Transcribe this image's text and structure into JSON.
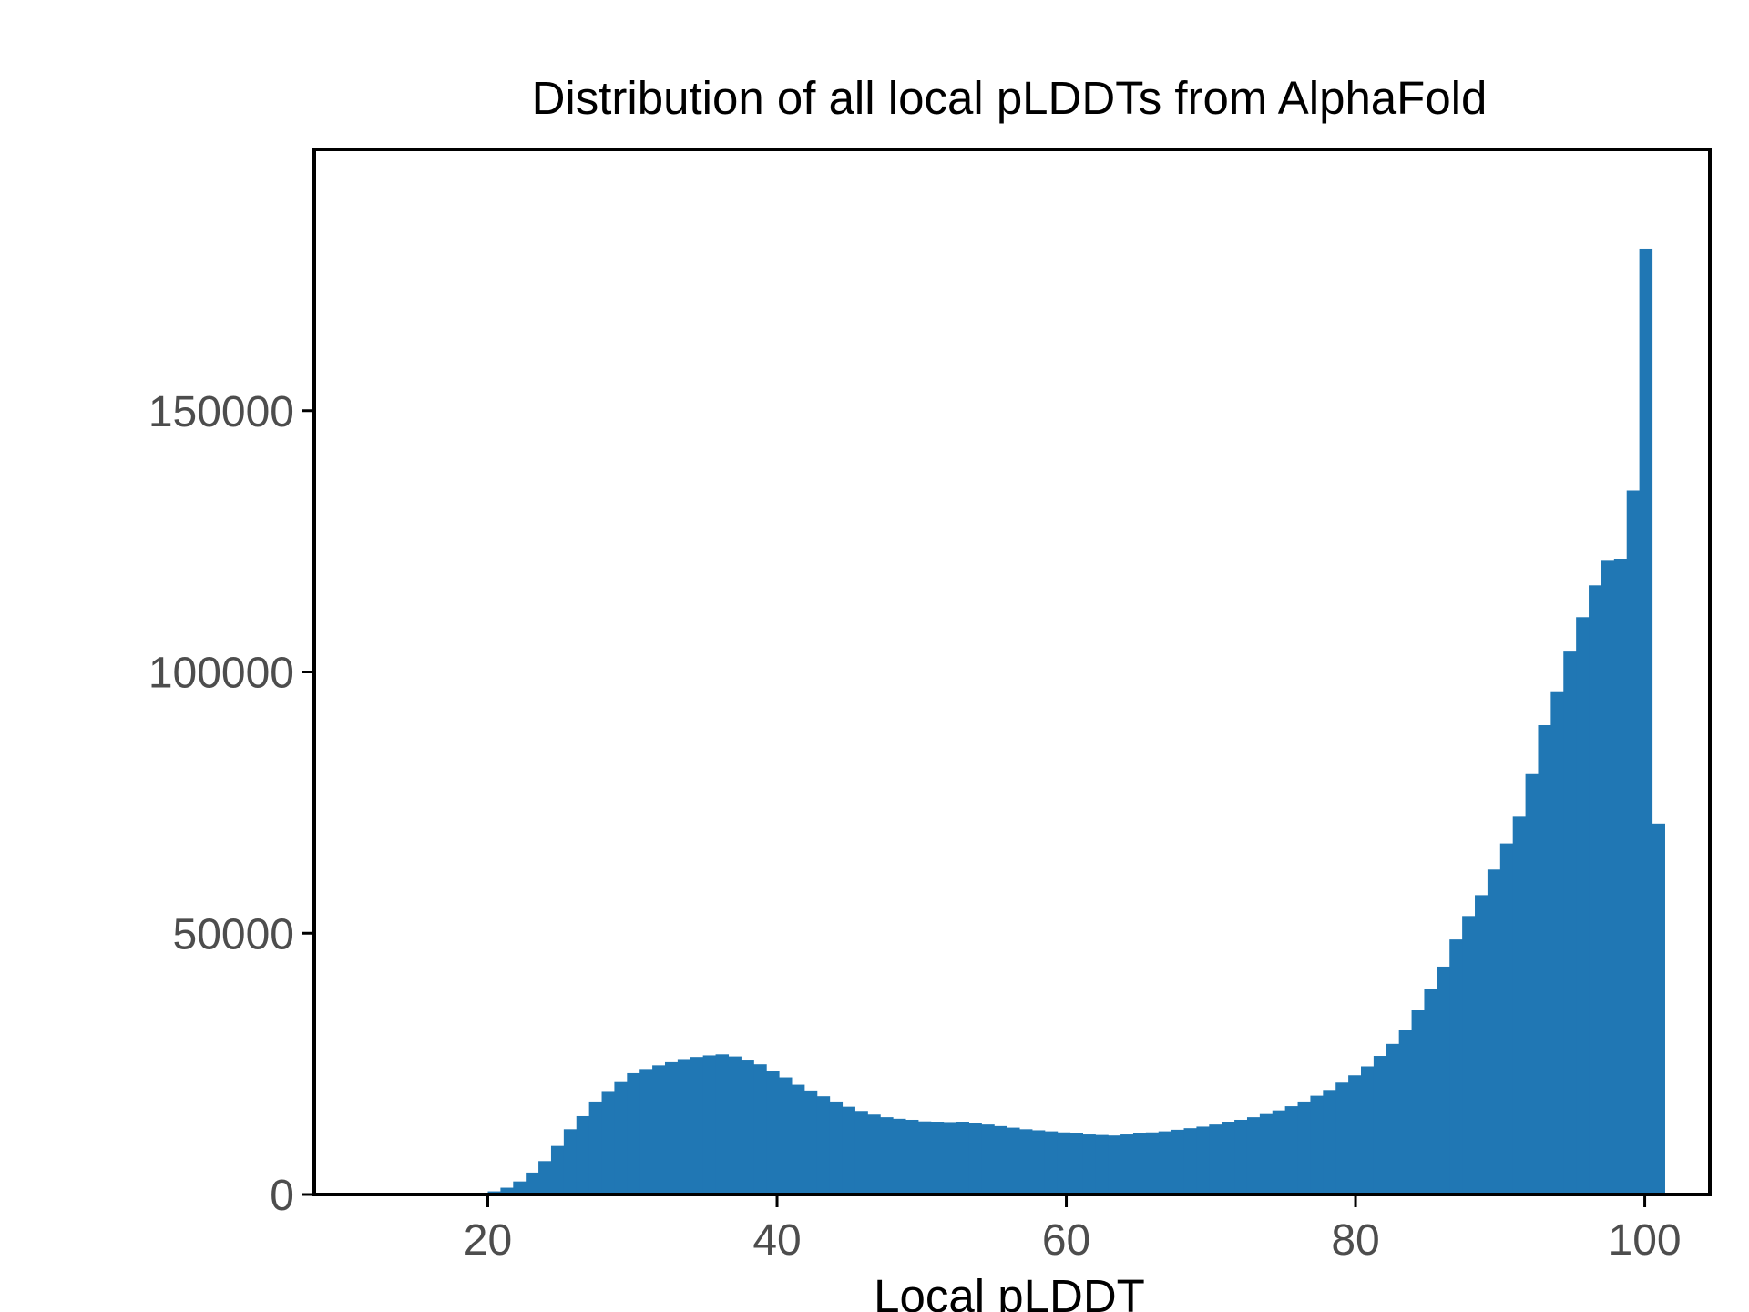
{
  "chart_data": {
    "type": "bar",
    "title": "Distribution of all local pLDDTs from AlphaFold",
    "xlabel": "Local pLDDT",
    "ylabel": "",
    "xlim": [
      8,
      104.5
    ],
    "ylim": [
      0,
      200000
    ],
    "x_ticks": [
      20,
      40,
      60,
      80,
      100
    ],
    "y_ticks": [
      0,
      50000,
      100000,
      150000
    ],
    "grid": false,
    "legend": "none",
    "bar_color": "#2077b4",
    "bin_width": 0.875,
    "bin_start": 20.0,
    "values": [
      600,
      1300,
      2500,
      4200,
      6400,
      9300,
      12500,
      15000,
      17800,
      19800,
      21500,
      23200,
      24000,
      24700,
      25300,
      25900,
      26300,
      26600,
      26800,
      26400,
      25800,
      24900,
      23700,
      22400,
      21000,
      19900,
      18800,
      17800,
      16800,
      16000,
      15300,
      14800,
      14500,
      14300,
      14000,
      13800,
      13700,
      13800,
      13600,
      13400,
      13100,
      12800,
      12500,
      12300,
      12100,
      11900,
      11700,
      11500,
      11400,
      11300,
      11500,
      11700,
      11900,
      12100,
      12400,
      12700,
      13000,
      13400,
      13800,
      14300,
      14800,
      15400,
      16100,
      16900,
      17800,
      18900,
      20000,
      21400,
      22800,
      24500,
      26500,
      28800,
      31400,
      35300,
      39300,
      43600,
      48800,
      53300,
      57300,
      62200,
      67200,
      72300,
      80600,
      89800,
      96300,
      103900,
      110500,
      116600,
      121300,
      121700,
      134700,
      181000,
      71000
    ]
  }
}
